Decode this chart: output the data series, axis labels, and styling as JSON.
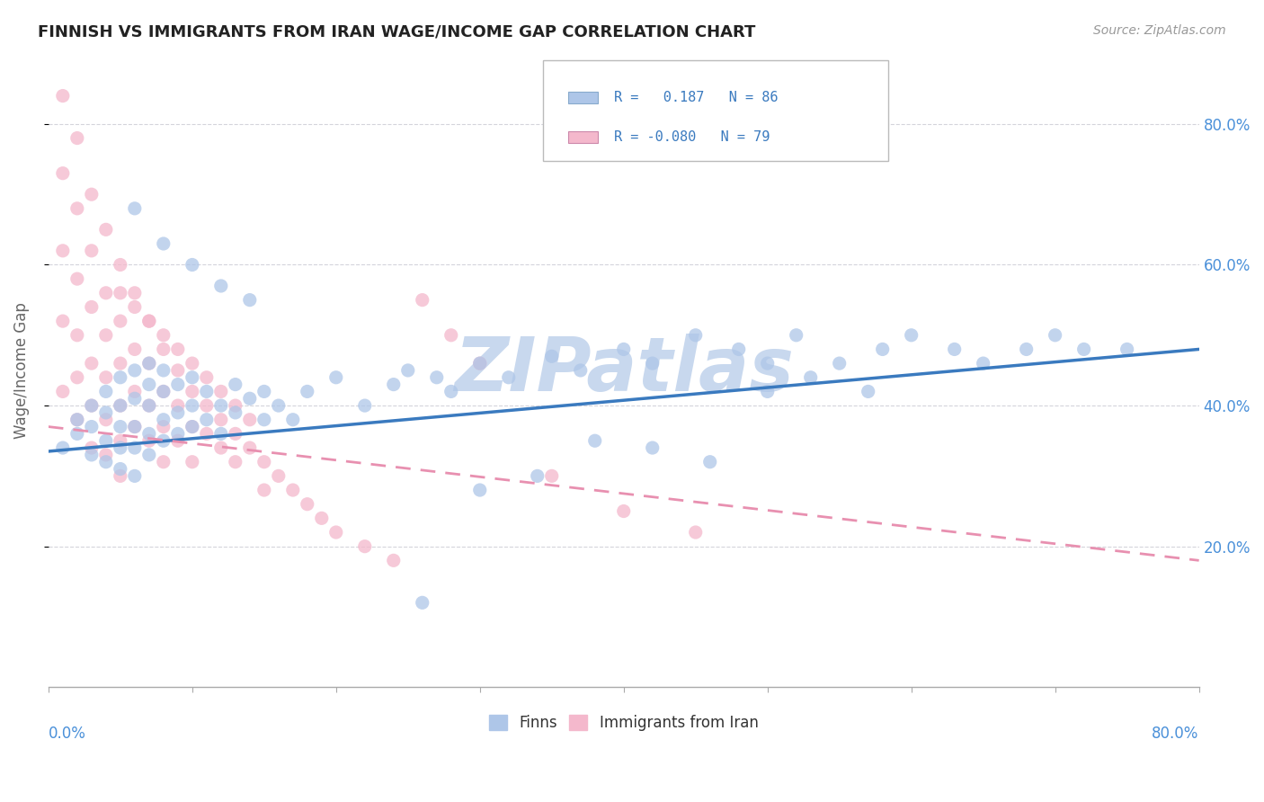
{
  "title": "FINNISH VS IMMIGRANTS FROM IRAN WAGE/INCOME GAP CORRELATION CHART",
  "source": "Source: ZipAtlas.com",
  "ylabel": "Wage/Income Gap",
  "R_finns": 0.187,
  "N_finns": 86,
  "R_iran": -0.08,
  "N_iran": 79,
  "background_color": "#ffffff",
  "grid_color": "#d0d0d8",
  "finn_color": "#aec6e8",
  "iran_color": "#f4b8cc",
  "finn_line_color": "#3a7abf",
  "iran_line_color": "#e890b0",
  "watermark_color": "#c8d8ee",
  "xlim": [
    0.0,
    0.8
  ],
  "ylim": [
    0.0,
    0.9
  ],
  "finn_scatter_x": [
    0.01,
    0.02,
    0.02,
    0.03,
    0.03,
    0.03,
    0.04,
    0.04,
    0.04,
    0.04,
    0.05,
    0.05,
    0.05,
    0.05,
    0.05,
    0.06,
    0.06,
    0.06,
    0.06,
    0.06,
    0.07,
    0.07,
    0.07,
    0.07,
    0.07,
    0.08,
    0.08,
    0.08,
    0.08,
    0.09,
    0.09,
    0.09,
    0.1,
    0.1,
    0.1,
    0.11,
    0.11,
    0.12,
    0.12,
    0.13,
    0.13,
    0.14,
    0.15,
    0.15,
    0.16,
    0.17,
    0.18,
    0.2,
    0.22,
    0.24,
    0.25,
    0.27,
    0.28,
    0.3,
    0.32,
    0.35,
    0.37,
    0.4,
    0.42,
    0.45,
    0.48,
    0.5,
    0.52,
    0.55,
    0.58,
    0.6,
    0.63,
    0.65,
    0.68,
    0.7,
    0.72,
    0.75,
    0.5,
    0.53,
    0.57,
    0.1,
    0.12,
    0.14,
    0.08,
    0.06,
    0.38,
    0.42,
    0.46,
    0.34,
    0.3,
    0.26
  ],
  "finn_scatter_y": [
    0.34,
    0.36,
    0.38,
    0.33,
    0.37,
    0.4,
    0.32,
    0.35,
    0.39,
    0.42,
    0.31,
    0.34,
    0.37,
    0.4,
    0.44,
    0.3,
    0.34,
    0.37,
    0.41,
    0.45,
    0.33,
    0.36,
    0.4,
    0.43,
    0.46,
    0.35,
    0.38,
    0.42,
    0.45,
    0.36,
    0.39,
    0.43,
    0.37,
    0.4,
    0.44,
    0.38,
    0.42,
    0.36,
    0.4,
    0.39,
    0.43,
    0.41,
    0.38,
    0.42,
    0.4,
    0.38,
    0.42,
    0.44,
    0.4,
    0.43,
    0.45,
    0.44,
    0.42,
    0.46,
    0.44,
    0.47,
    0.45,
    0.48,
    0.46,
    0.5,
    0.48,
    0.46,
    0.5,
    0.46,
    0.48,
    0.5,
    0.48,
    0.46,
    0.48,
    0.5,
    0.48,
    0.48,
    0.42,
    0.44,
    0.42,
    0.6,
    0.57,
    0.55,
    0.63,
    0.68,
    0.35,
    0.34,
    0.32,
    0.3,
    0.28,
    0.12
  ],
  "iran_scatter_x": [
    0.01,
    0.01,
    0.01,
    0.01,
    0.01,
    0.02,
    0.02,
    0.02,
    0.02,
    0.02,
    0.02,
    0.03,
    0.03,
    0.03,
    0.03,
    0.03,
    0.03,
    0.04,
    0.04,
    0.04,
    0.04,
    0.04,
    0.04,
    0.05,
    0.05,
    0.05,
    0.05,
    0.05,
    0.05,
    0.06,
    0.06,
    0.06,
    0.06,
    0.07,
    0.07,
    0.07,
    0.07,
    0.08,
    0.08,
    0.08,
    0.08,
    0.09,
    0.09,
    0.09,
    0.1,
    0.1,
    0.1,
    0.11,
    0.11,
    0.12,
    0.12,
    0.13,
    0.13,
    0.14,
    0.15,
    0.15,
    0.16,
    0.17,
    0.18,
    0.19,
    0.2,
    0.22,
    0.24,
    0.26,
    0.28,
    0.3,
    0.35,
    0.4,
    0.45,
    0.05,
    0.06,
    0.07,
    0.08,
    0.09,
    0.1,
    0.11,
    0.12,
    0.13,
    0.14
  ],
  "iran_scatter_y": [
    0.84,
    0.73,
    0.62,
    0.52,
    0.42,
    0.78,
    0.68,
    0.58,
    0.5,
    0.44,
    0.38,
    0.7,
    0.62,
    0.54,
    0.46,
    0.4,
    0.34,
    0.65,
    0.56,
    0.5,
    0.44,
    0.38,
    0.33,
    0.6,
    0.52,
    0.46,
    0.4,
    0.35,
    0.3,
    0.56,
    0.48,
    0.42,
    0.37,
    0.52,
    0.46,
    0.4,
    0.35,
    0.48,
    0.42,
    0.37,
    0.32,
    0.45,
    0.4,
    0.35,
    0.42,
    0.37,
    0.32,
    0.4,
    0.36,
    0.38,
    0.34,
    0.36,
    0.32,
    0.34,
    0.32,
    0.28,
    0.3,
    0.28,
    0.26,
    0.24,
    0.22,
    0.2,
    0.18,
    0.55,
    0.5,
    0.46,
    0.3,
    0.25,
    0.22,
    0.56,
    0.54,
    0.52,
    0.5,
    0.48,
    0.46,
    0.44,
    0.42,
    0.4,
    0.38
  ]
}
